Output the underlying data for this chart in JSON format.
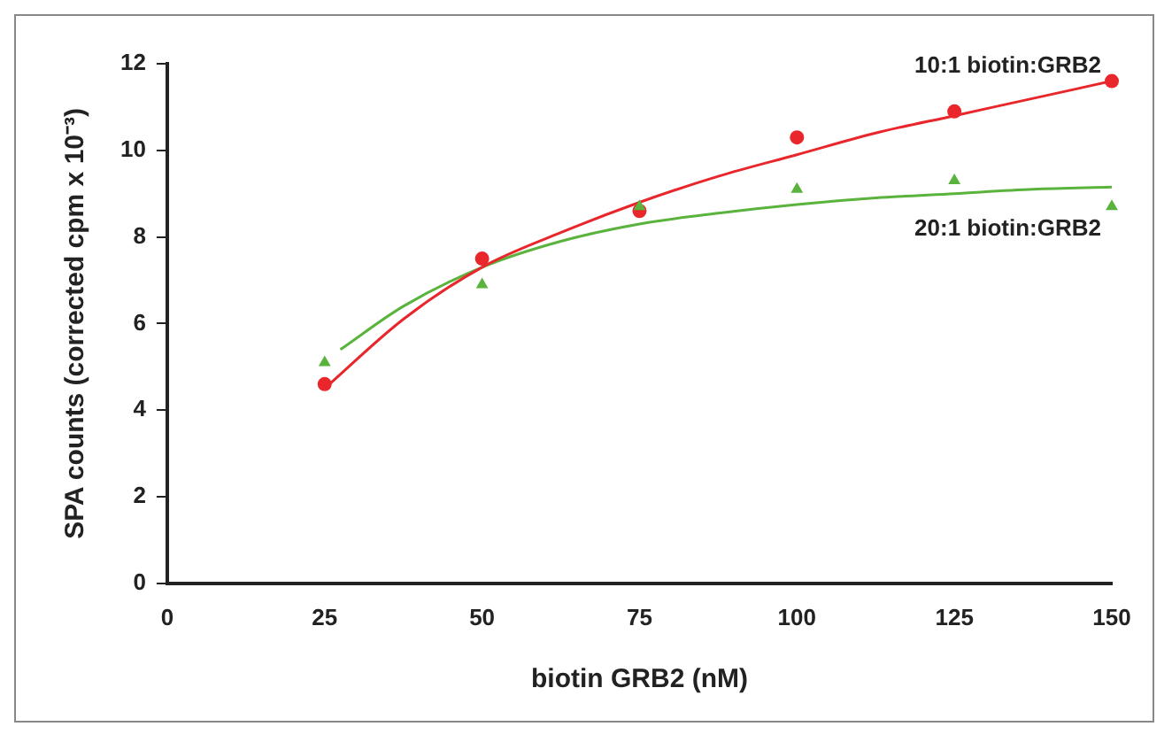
{
  "chart_data": {
    "type": "scatter",
    "xlabel": "biotin GRB2 (nM)",
    "ylabel": "SPA counts (corrected cpm x 10⁻³)",
    "xlim": [
      0,
      150
    ],
    "xticks": [
      0,
      25,
      50,
      75,
      100,
      125,
      150
    ],
    "ylim": [
      0,
      12
    ],
    "yticks": [
      0,
      2,
      4,
      6,
      8,
      10,
      12
    ],
    "grid": false,
    "legend": false,
    "series": [
      {
        "name": "10:1 biotin:GRB2",
        "color": "#e8262b",
        "marker": "circle",
        "x": [
          25,
          50,
          75,
          100,
          125,
          150
        ],
        "values": [
          4.6,
          7.5,
          8.6,
          10.3,
          10.9,
          11.6
        ]
      },
      {
        "name": "20:1 biotin:GRB2",
        "color": "#5ab33c",
        "marker": "triangle",
        "x": [
          25,
          50,
          75,
          100,
          125,
          150
        ],
        "values": [
          5.1,
          6.9,
          8.7,
          9.1,
          9.3,
          8.7
        ]
      },
      {
        "type": "line",
        "color": "#e8262b",
        "marker": "none",
        "x": [
          25,
          37.5,
          50,
          62.5,
          75,
          87.5,
          100,
          112.5,
          125,
          137.5,
          150
        ],
        "values": [
          4.5,
          6.1,
          7.3,
          8.1,
          8.8,
          9.4,
          9.9,
          10.4,
          10.8,
          11.2,
          11.6
        ]
      },
      {
        "type": "line",
        "color": "#5ab33c",
        "marker": "none",
        "x": [
          27.5,
          37.5,
          50,
          62.5,
          75,
          87.5,
          100,
          112.5,
          125,
          137.5,
          150
        ],
        "values": [
          5.4,
          6.4,
          7.3,
          7.9,
          8.3,
          8.55,
          8.75,
          8.9,
          9.0,
          9.1,
          9.15
        ]
      }
    ]
  }
}
